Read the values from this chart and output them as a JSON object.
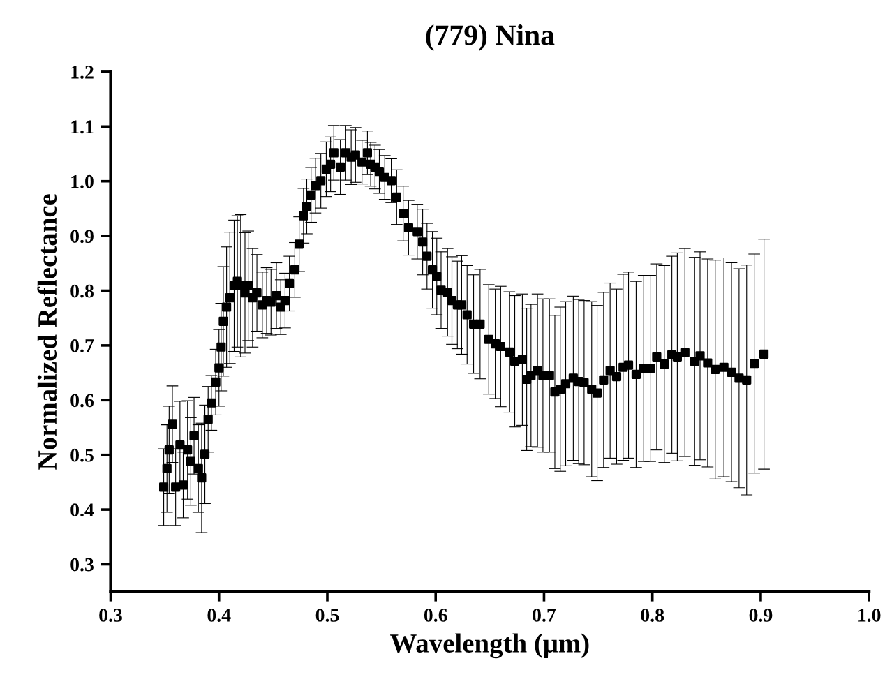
{
  "chart_data": {
    "type": "scatter",
    "title": "(779) Nina",
    "xlabel": "Wavelength (μm)",
    "ylabel": "Normalized Reflectance",
    "xlim": [
      0.3,
      1.0
    ],
    "ylim": [
      0.25,
      1.2
    ],
    "xticks": [
      0.3,
      0.4,
      0.5,
      0.6,
      0.7,
      0.8,
      0.9,
      {
        "value": 1.0,
        "label": "1.0"
      }
    ],
    "yticks": [
      0.3,
      0.4,
      0.5,
      0.6,
      0.7,
      0.8,
      0.9,
      {
        "value": 1.0,
        "label": "1.0"
      },
      1.1,
      1.2
    ],
    "grid": false,
    "legend": false,
    "marker": "square",
    "series": [
      {
        "color": "#000000",
        "x": [
          0.349,
          0.352,
          0.354,
          0.357,
          0.36,
          0.364,
          0.367,
          0.371,
          0.374,
          0.377,
          0.381,
          0.384,
          0.387,
          0.39,
          0.393,
          0.397,
          0.4,
          0.402,
          0.404,
          0.407,
          0.41,
          0.414,
          0.417,
          0.42,
          0.424,
          0.427,
          0.431,
          0.435,
          0.44,
          0.444,
          0.448,
          0.453,
          0.457,
          0.461,
          0.465,
          0.47,
          0.474,
          0.478,
          0.481,
          0.485,
          0.489,
          0.494,
          0.499,
          0.503,
          0.506,
          0.512,
          0.517,
          0.522,
          0.526,
          0.532,
          0.537,
          0.54,
          0.544,
          0.548,
          0.553,
          0.559,
          0.564,
          0.57,
          0.575,
          0.583,
          0.588,
          0.592,
          0.597,
          0.601,
          0.605,
          0.611,
          0.615,
          0.62,
          0.624,
          0.629,
          0.635,
          0.641,
          0.649,
          0.655,
          0.66,
          0.668,
          0.673,
          0.68,
          0.684,
          0.688,
          0.694,
          0.699,
          0.705,
          0.71,
          0.715,
          0.72,
          0.727,
          0.732,
          0.737,
          0.744,
          0.749,
          0.755,
          0.761,
          0.767,
          0.773,
          0.778,
          0.785,
          0.792,
          0.798,
          0.804,
          0.811,
          0.818,
          0.823,
          0.83,
          0.839,
          0.844,
          0.851,
          0.858,
          0.866,
          0.873,
          0.88,
          0.887,
          0.894,
          0.903
        ],
        "values": [
          0.441,
          0.475,
          0.509,
          0.556,
          0.441,
          0.518,
          0.445,
          0.509,
          0.488,
          0.535,
          0.475,
          0.458,
          0.501,
          0.565,
          0.595,
          0.633,
          0.659,
          0.697,
          0.744,
          0.77,
          0.787,
          0.809,
          0.817,
          0.809,
          0.796,
          0.809,
          0.787,
          0.796,
          0.774,
          0.782,
          0.779,
          0.791,
          0.77,
          0.782,
          0.813,
          0.838,
          0.885,
          0.937,
          0.954,
          0.975,
          0.992,
          1.001,
          1.022,
          1.031,
          1.052,
          1.026,
          1.052,
          1.044,
          1.048,
          1.035,
          1.052,
          1.031,
          1.026,
          1.018,
          1.007,
          1.001,
          0.971,
          0.941,
          0.915,
          0.908,
          0.889,
          0.863,
          0.838,
          0.826,
          0.801,
          0.797,
          0.782,
          0.774,
          0.774,
          0.756,
          0.739,
          0.739,
          0.711,
          0.703,
          0.698,
          0.688,
          0.671,
          0.674,
          0.638,
          0.645,
          0.654,
          0.645,
          0.645,
          0.615,
          0.62,
          0.63,
          0.64,
          0.634,
          0.632,
          0.62,
          0.613,
          0.637,
          0.654,
          0.643,
          0.66,
          0.664,
          0.647,
          0.658,
          0.658,
          0.679,
          0.666,
          0.683,
          0.679,
          0.687,
          0.671,
          0.681,
          0.668,
          0.656,
          0.66,
          0.651,
          0.64,
          0.637,
          0.667,
          0.684
        ],
        "errors": [
          0.07,
          0.08,
          0.08,
          0.07,
          0.07,
          0.08,
          0.06,
          0.09,
          0.08,
          0.07,
          0.08,
          0.1,
          0.09,
          0.06,
          0.05,
          0.06,
          0.07,
          0.08,
          0.1,
          0.11,
          0.12,
          0.12,
          0.12,
          0.13,
          0.11,
          0.1,
          0.09,
          0.07,
          0.06,
          0.06,
          0.06,
          0.06,
          0.05,
          0.05,
          0.05,
          0.05,
          0.05,
          0.05,
          0.05,
          0.05,
          0.05,
          0.05,
          0.05,
          0.05,
          0.05,
          0.05,
          0.05,
          0.05,
          0.05,
          0.04,
          0.04,
          0.04,
          0.04,
          0.04,
          0.04,
          0.04,
          0.05,
          0.05,
          0.05,
          0.05,
          0.06,
          0.06,
          0.07,
          0.07,
          0.07,
          0.08,
          0.08,
          0.08,
          0.09,
          0.09,
          0.09,
          0.1,
          0.1,
          0.1,
          0.11,
          0.11,
          0.12,
          0.12,
          0.13,
          0.13,
          0.14,
          0.14,
          0.14,
          0.14,
          0.15,
          0.15,
          0.15,
          0.15,
          0.15,
          0.16,
          0.16,
          0.16,
          0.16,
          0.16,
          0.17,
          0.17,
          0.17,
          0.17,
          0.17,
          0.17,
          0.18,
          0.18,
          0.19,
          0.19,
          0.19,
          0.19,
          0.19,
          0.2,
          0.2,
          0.2,
          0.2,
          0.21,
          0.2,
          0.21
        ]
      }
    ]
  }
}
